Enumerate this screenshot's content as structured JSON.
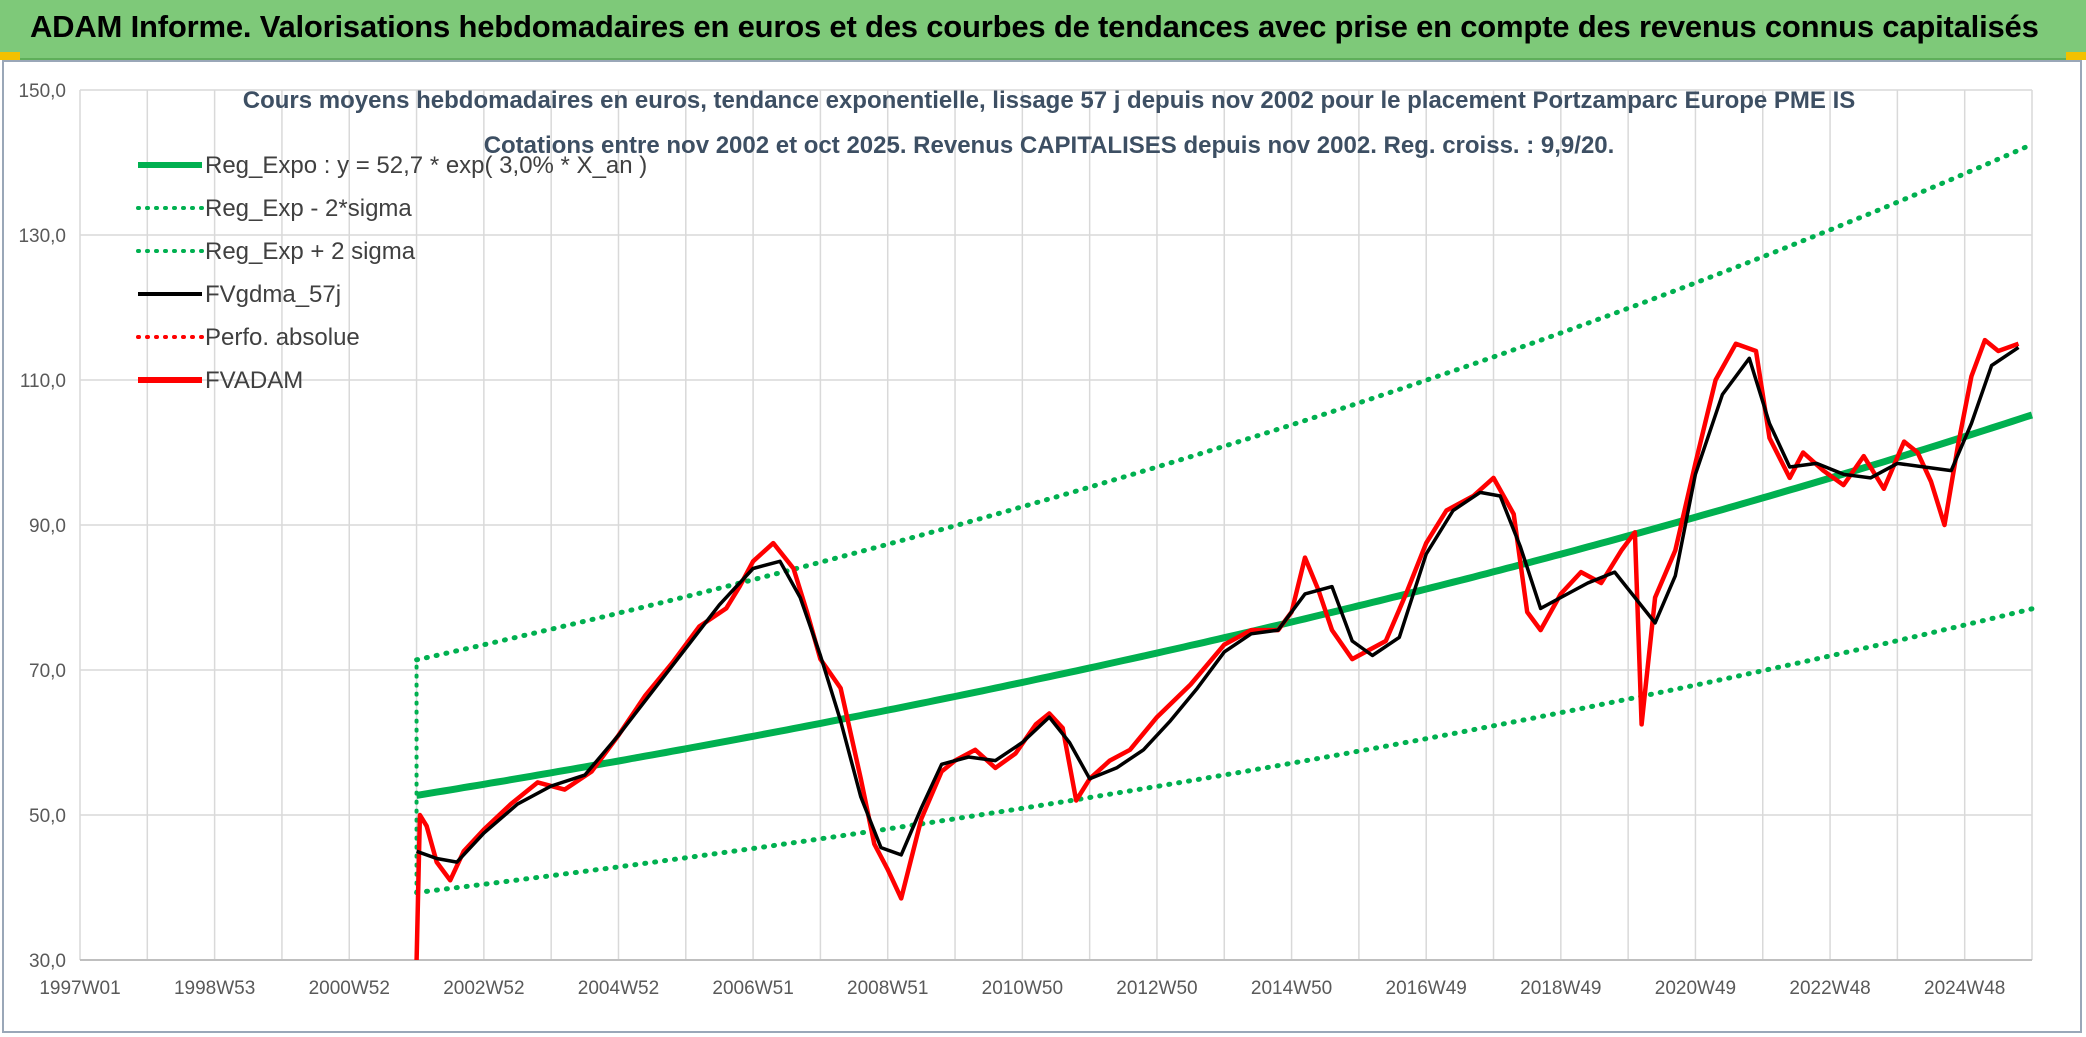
{
  "header": {
    "title": "ADAM Informe. Valorisations hebdomadaires en euros et des courbes de tendances avec prise en compte des revenus connus capitalisés"
  },
  "colors": {
    "banner": "#7ec979",
    "regression": "#00b050",
    "smoothed": "#000000",
    "fund": "#ff0000",
    "grid": "#d9d9d9"
  },
  "chart_data": {
    "type": "line",
    "title_line1": "Cours moyens hebdomadaires en euros, tendance exponentielle, lissage 57 j depuis nov 2002 pour le placement Portzamparc Europe PME IS",
    "title_line2": "Cotations entre nov 2002 et oct 2025. Revenus CAPITALISES depuis nov 2002. Reg. croiss. : 9,9/20.",
    "x_tick_labels": [
      "1997W01",
      "1998W53",
      "2000W52",
      "2002W52",
      "2004W52",
      "2006W51",
      "2008W51",
      "2010W50",
      "2012W50",
      "2014W50",
      "2016W49",
      "2018W49",
      "2020W49",
      "2022W48",
      "2024W48"
    ],
    "x_range": [
      1997.0,
      2026.0
    ],
    "y_tick_labels": [
      "30,0",
      "50,0",
      "70,0",
      "90,0",
      "110,0",
      "130,0",
      "150,0"
    ],
    "y_ticks": [
      30,
      50,
      70,
      90,
      110,
      130,
      150
    ],
    "ylim": [
      30,
      150
    ],
    "grid": true,
    "legend_position": "top-left",
    "legend": [
      {
        "label": "Reg_Expo : y = 52,7 * exp( 3,0% *  X_an )",
        "style": "solid-thick",
        "color": "#00b050"
      },
      {
        "label": "Reg_Exp - 2*sigma",
        "style": "dotted",
        "color": "#00b050"
      },
      {
        "label": "Reg_Exp + 2 sigma",
        "style": "dotted",
        "color": "#00b050"
      },
      {
        "label": "FVgdma_57j",
        "style": "solid",
        "color": "#000000"
      },
      {
        "label": "Perfo. absolue",
        "style": "dotted",
        "color": "#ff0000"
      },
      {
        "label": "FVADAM",
        "style": "solid-thick",
        "color": "#ff0000"
      }
    ],
    "regression": {
      "start_x": 2002.0,
      "end_x": 2026.0,
      "start_y": 52.7,
      "rate": 0.03,
      "lower_start": 39.3,
      "upper_start": 71.4,
      "upper_end": 142.5,
      "lower_end": 77.4
    },
    "series": [
      {
        "name": "FVADAM",
        "x": [
          2002.0,
          2002.05,
          2002.15,
          2002.3,
          2002.5,
          2002.7,
          2003.0,
          2003.4,
          2003.8,
          2004.2,
          2004.6,
          2005.0,
          2005.4,
          2005.8,
          2006.2,
          2006.6,
          2006.8,
          2007.0,
          2007.3,
          2007.6,
          2007.8,
          2008.0,
          2008.3,
          2008.6,
          2008.8,
          2009.0,
          2009.2,
          2009.5,
          2009.8,
          2010.0,
          2010.3,
          2010.6,
          2010.9,
          2011.2,
          2011.4,
          2011.6,
          2011.8,
          2012.0,
          2012.3,
          2012.6,
          2013.0,
          2013.5,
          2014.0,
          2014.4,
          2014.8,
          2015.0,
          2015.2,
          2015.4,
          2015.6,
          2015.9,
          2016.1,
          2016.4,
          2016.7,
          2017.0,
          2017.3,
          2017.7,
          2018.0,
          2018.3,
          2018.5,
          2018.7,
          2019.0,
          2019.3,
          2019.6,
          2019.9,
          2020.1,
          2020.2,
          2020.4,
          2020.7,
          2021.0,
          2021.3,
          2021.6,
          2021.9,
          2022.1,
          2022.4,
          2022.6,
          2022.9,
          2023.2,
          2023.5,
          2023.8,
          2024.1,
          2024.3,
          2024.5,
          2024.7,
          2024.9,
          2025.1,
          2025.3,
          2025.5,
          2025.8
        ],
        "values": [
          30.0,
          50.0,
          48.5,
          43.5,
          41.0,
          45.0,
          48.0,
          51.5,
          54.5,
          53.5,
          56.0,
          61.0,
          66.5,
          71.0,
          76.0,
          78.5,
          81.5,
          85.0,
          87.5,
          84.0,
          78.0,
          71.5,
          67.5,
          55.0,
          46.0,
          42.5,
          38.5,
          49.5,
          56.0,
          57.5,
          59.0,
          56.5,
          58.5,
          62.5,
          64.0,
          62.0,
          52.0,
          55.0,
          57.5,
          59.0,
          63.5,
          68.0,
          73.5,
          75.5,
          75.5,
          78.0,
          85.5,
          81.0,
          75.5,
          71.5,
          72.5,
          74.0,
          80.5,
          87.5,
          92.0,
          94.0,
          96.5,
          91.5,
          78.0,
          75.5,
          80.5,
          83.5,
          82.0,
          86.5,
          89.0,
          62.5,
          80.0,
          86.5,
          98.5,
          110.0,
          115.0,
          114.0,
          102.0,
          96.5,
          100.0,
          97.5,
          95.5,
          99.5,
          95.0,
          101.5,
          100.0,
          96.0,
          90.0,
          101.0,
          110.5,
          115.5,
          114.0,
          115.0
        ]
      },
      {
        "name": "FVgdma_57j",
        "x": [
          2002.0,
          2002.3,
          2002.6,
          2003.0,
          2003.5,
          2004.0,
          2004.5,
          2005.0,
          2005.5,
          2006.0,
          2006.5,
          2007.0,
          2007.4,
          2007.7,
          2008.0,
          2008.3,
          2008.6,
          2008.9,
          2009.2,
          2009.5,
          2009.8,
          2010.2,
          2010.6,
          2011.0,
          2011.4,
          2011.7,
          2012.0,
          2012.4,
          2012.8,
          2013.2,
          2013.6,
          2014.0,
          2014.4,
          2014.8,
          2015.2,
          2015.6,
          2015.9,
          2016.2,
          2016.6,
          2017.0,
          2017.4,
          2017.8,
          2018.1,
          2018.4,
          2018.7,
          2019.0,
          2019.4,
          2019.8,
          2020.1,
          2020.4,
          2020.7,
          2021.0,
          2021.4,
          2021.8,
          2022.1,
          2022.4,
          2022.8,
          2023.2,
          2023.6,
          2024.0,
          2024.4,
          2024.8,
          2025.1,
          2025.4,
          2025.8
        ],
        "values": [
          45.0,
          44.0,
          43.5,
          47.5,
          51.5,
          54.0,
          55.5,
          61.0,
          67.0,
          73.0,
          79.0,
          84.0,
          85.0,
          80.0,
          72.0,
          63.0,
          52.5,
          45.5,
          44.5,
          51.0,
          57.0,
          58.0,
          57.5,
          60.0,
          63.5,
          60.0,
          55.0,
          56.5,
          59.0,
          63.0,
          67.5,
          72.5,
          75.0,
          75.5,
          80.5,
          81.5,
          74.0,
          72.0,
          74.5,
          86.0,
          92.0,
          94.5,
          94.0,
          87.0,
          78.5,
          80.0,
          82.0,
          83.5,
          80.0,
          76.5,
          83.0,
          97.0,
          108.0,
          113.0,
          104.0,
          98.0,
          98.5,
          97.0,
          96.5,
          98.5,
          98.0,
          97.5,
          104.0,
          112.0,
          114.5
        ]
      }
    ]
  }
}
